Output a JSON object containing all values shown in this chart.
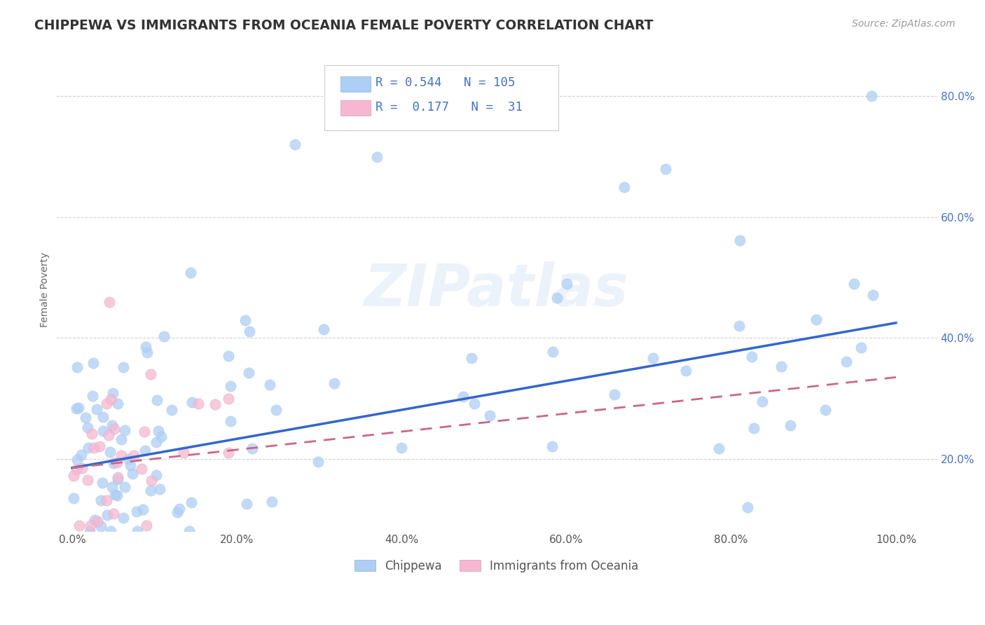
{
  "title": "CHIPPEWA VS IMMIGRANTS FROM OCEANIA FEMALE POVERTY CORRELATION CHART",
  "source": "Source: ZipAtlas.com",
  "ylabel": "Female Poverty",
  "watermark": "ZIPatlas",
  "legend_label1": "Chippewa",
  "legend_label2": "Immigrants from Oceania",
  "R1": 0.544,
  "N1": 105,
  "R2": 0.177,
  "N2": 31,
  "color1": "#aecef5",
  "color2": "#f5b8d0",
  "line_color1": "#3366cc",
  "line_color2": "#cc6688",
  "background": "#ffffff",
  "ytick_labels": [
    "20.0%",
    "40.0%",
    "60.0%",
    "80.0%"
  ],
  "ytick_vals": [
    0.2,
    0.4,
    0.6,
    0.8
  ],
  "xtick_labels": [
    "0.0%",
    "20.0%",
    "40.0%",
    "60.0%",
    "80.0%",
    "100.0%"
  ],
  "xtick_vals": [
    0.0,
    0.2,
    0.4,
    0.6,
    0.8,
    1.0
  ],
  "xlim": [
    -0.02,
    1.05
  ],
  "ylim": [
    0.08,
    0.88
  ],
  "line1_x0": 0.0,
  "line1_y0": 0.185,
  "line1_x1": 1.0,
  "line1_y1": 0.425,
  "line2_x0": 0.0,
  "line2_y0": 0.185,
  "line2_x1": 1.0,
  "line2_y1": 0.335
}
